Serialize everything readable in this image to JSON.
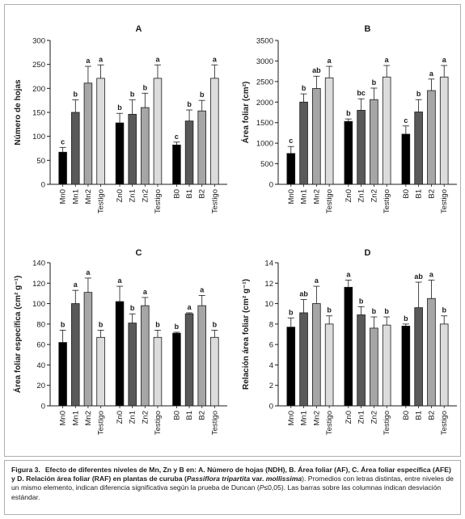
{
  "chart_data": [
    {
      "type": "bar",
      "panel": "A",
      "title": "A",
      "ylabel": "Número de hojas",
      "ylim": [
        0,
        300
      ],
      "yticks": [
        0,
        50,
        100,
        150,
        200,
        250,
        300
      ],
      "groups": [
        {
          "categories": [
            "Mn0",
            "Mn1",
            "Mn2",
            "Testigo"
          ],
          "values": [
            67,
            150,
            211,
            221
          ],
          "errors": [
            10,
            26,
            35,
            28
          ],
          "letters": [
            "c",
            "b",
            "a",
            "a"
          ]
        },
        {
          "categories": [
            "Zn0",
            "Zn1",
            "Zn2",
            "Testigo"
          ],
          "values": [
            128,
            146,
            160,
            221
          ],
          "errors": [
            20,
            30,
            30,
            28
          ],
          "letters": [
            "b",
            "b",
            "b",
            "a"
          ]
        },
        {
          "categories": [
            "B0",
            "B1",
            "B2",
            "Testigo"
          ],
          "values": [
            82,
            132,
            153,
            221
          ],
          "errors": [
            6,
            23,
            22,
            28
          ],
          "letters": [
            "c",
            "b",
            "b",
            "a"
          ]
        }
      ]
    },
    {
      "type": "bar",
      "panel": "B",
      "title": "B",
      "ylabel": "Área foliar (cm²)",
      "ylim": [
        0,
        3500
      ],
      "yticks": [
        0,
        500,
        1000,
        1500,
        2000,
        2500,
        3000,
        3500
      ],
      "groups": [
        {
          "categories": [
            "Mn0",
            "Mn1",
            "Mn2",
            "Testigo"
          ],
          "values": [
            750,
            2000,
            2330,
            2590
          ],
          "errors": [
            170,
            200,
            300,
            280
          ],
          "letters": [
            "c",
            "b",
            "ab",
            "a"
          ]
        },
        {
          "categories": [
            "Zn0",
            "Zn1",
            "Zn2",
            "Testigo"
          ],
          "values": [
            1530,
            1800,
            2060,
            2610
          ],
          "errors": [
            60,
            280,
            280,
            280
          ],
          "letters": [
            "b",
            "bc",
            "b",
            "a"
          ]
        },
        {
          "categories": [
            "B0",
            "B1",
            "B2",
            "Testigo"
          ],
          "values": [
            1220,
            1760,
            2280,
            2610
          ],
          "errors": [
            200,
            300,
            280,
            280
          ],
          "letters": [
            "c",
            "b",
            "a",
            "a"
          ]
        }
      ]
    },
    {
      "type": "bar",
      "panel": "C",
      "title": "C",
      "ylabel": "Área foliar específica (cm² g⁻¹)",
      "ylim": [
        0,
        140
      ],
      "yticks": [
        0,
        20,
        40,
        60,
        80,
        100,
        120,
        140
      ],
      "groups": [
        {
          "categories": [
            "Mn0",
            "Mn1",
            "Mn2",
            "Testigo"
          ],
          "values": [
            62,
            100,
            111,
            67
          ],
          "errors": [
            12,
            13,
            14,
            7
          ],
          "letters": [
            "b",
            "a",
            "a",
            "b"
          ]
        },
        {
          "categories": [
            "Zn0",
            "Zn1",
            "Zn2",
            "Testigo"
          ],
          "values": [
            102,
            81,
            98,
            67
          ],
          "errors": [
            15,
            9,
            8,
            7
          ],
          "letters": [
            "a",
            "b",
            "a",
            "b"
          ]
        },
        {
          "categories": [
            "B0",
            "B1",
            "B2",
            "Testigo"
          ],
          "values": [
            71,
            90,
            98,
            67
          ],
          "errors": [
            1,
            1,
            10,
            7
          ],
          "letters": [
            "b",
            "a",
            "a",
            "b"
          ]
        }
      ]
    },
    {
      "type": "bar",
      "panel": "D",
      "title": "D",
      "ylabel": "Relación área foliar (cm² g⁻¹)",
      "ylim": [
        0,
        14
      ],
      "yticks": [
        0,
        2,
        4,
        6,
        8,
        10,
        12,
        14
      ],
      "groups": [
        {
          "categories": [
            "Mn0",
            "Mn1",
            "Mn2",
            "Testigo"
          ],
          "values": [
            7.7,
            9.1,
            10.0,
            8.0
          ],
          "errors": [
            0.9,
            1.3,
            1.7,
            0.8
          ],
          "letters": [
            "b",
            "ab",
            "a",
            "b"
          ]
        },
        {
          "categories": [
            "Zn0",
            "Zn1",
            "Zn2",
            "Testigo"
          ],
          "values": [
            11.6,
            8.9,
            7.6,
            7.9
          ],
          "errors": [
            0.7,
            0.8,
            1.1,
            0.8
          ],
          "letters": [
            "a",
            "b",
            "b",
            "b"
          ]
        },
        {
          "categories": [
            "B0",
            "B1",
            "B2",
            "Testigo"
          ],
          "values": [
            7.8,
            9.6,
            10.5,
            8.0
          ],
          "errors": [
            0.2,
            2.5,
            1.8,
            0.8
          ],
          "letters": [
            "b",
            "ab",
            "a",
            "b"
          ]
        }
      ]
    }
  ],
  "bar_colors": [
    "#000000",
    "#595959",
    "#a6a6a6",
    "#dcdcdc"
  ],
  "caption": {
    "label": "Figura 3.",
    "part1": "Efecto de diferentes niveles de Mn, Zn y B en: A. Número de hojas (NDH), B. Área foliar (AF), C. Área foliar específica (AFE) y D. Relación área foliar (RAF) en plantas de curuba (",
    "species": "Passiflora tripartita",
    "part2": " var. ",
    "variety": "mollissima",
    "part3": "). Promedios con letras distintas, entre niveles de un mismo elemento, indican diferencia significativa según la prueba de Duncan (",
    "stat": "P",
    "part4": "≤0,05). Las barras sobre las columnas indican desviación estándar."
  }
}
